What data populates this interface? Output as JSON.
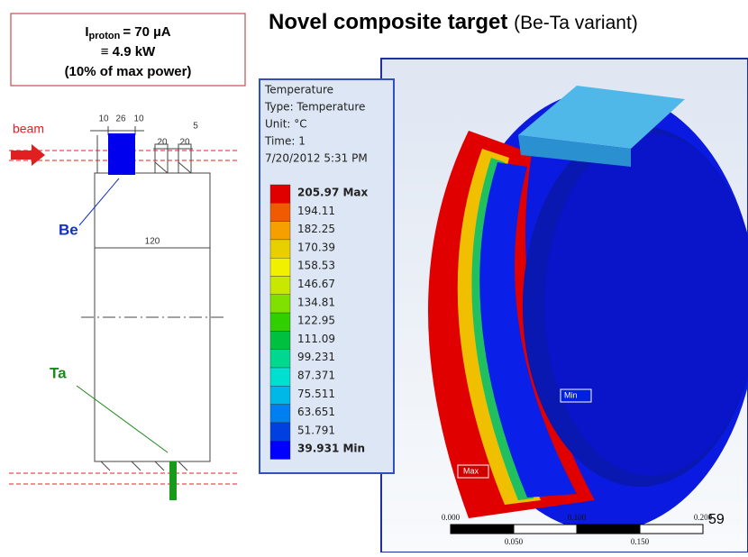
{
  "header": {
    "title_bold": "Novel composite target",
    "title_rest": "(Be-Ta variant)"
  },
  "info_box": {
    "current_symbol": "I",
    "current_subscript": "proton",
    "current_value": "= 70 µA",
    "power": "≡ 4.9 kW",
    "fraction": "(10% of max power)"
  },
  "drawing": {
    "beam": "beam",
    "be": "Be",
    "ta": "Ta",
    "dimensions": [
      "10",
      "26",
      "10",
      "5",
      "20",
      "20",
      "120"
    ]
  },
  "legend": {
    "lines": [
      "Temperature",
      "Type: Temperature",
      "Unit: °C",
      "Time: 1",
      "7/20/2012 5:31 PM"
    ],
    "levels": [
      "205.97 Max",
      "194.11",
      "182.25",
      "170.39",
      "158.53",
      "146.67",
      "134.81",
      "122.95",
      "111.09",
      "99.231",
      "87.371",
      "75.511",
      "63.651",
      "51.791",
      "39.931 Min"
    ],
    "colors": [
      "#e00000",
      "#f05a00",
      "#f5a000",
      "#e8d000",
      "#f0f000",
      "#c8e800",
      "#80e000",
      "#30d000",
      "#00c040",
      "#00d890",
      "#00e0d0",
      "#00b8e8",
      "#0080f0",
      "#0040e0",
      "#0000ff"
    ]
  },
  "simulation": {
    "max_tag": "Max",
    "min_tag": "Min",
    "scale_top": [
      "0.000",
      "0.100",
      "0.200"
    ],
    "scale_bottom": [
      "0.050",
      "0.150"
    ]
  },
  "page_number": "59"
}
